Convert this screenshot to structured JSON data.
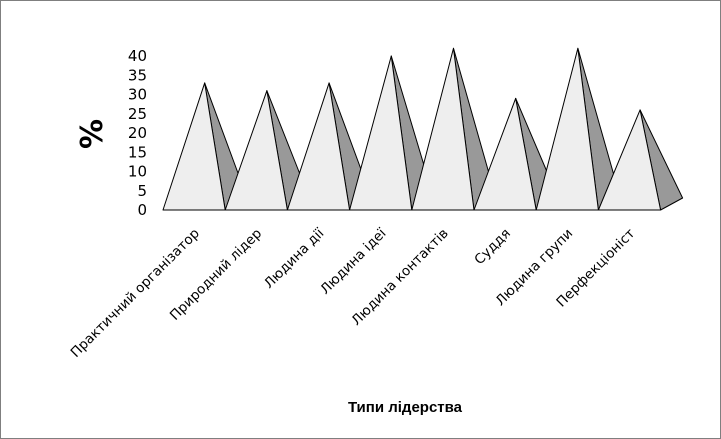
{
  "chart_data": {
    "type": "bar",
    "style": "3d-pyramid",
    "categories": [
      "Практичний організатор",
      "Природний лідер",
      "Людина дії",
      "Людина ідеї",
      "Людина контактів",
      "Суддя",
      "Людина групи",
      "Перфекціоніст"
    ],
    "values": [
      33,
      31,
      33,
      40,
      42,
      29,
      42,
      26
    ],
    "title": "",
    "xlabel": "Типи лідерства",
    "ylabel": "%",
    "ylim": [
      0,
      40
    ],
    "yticks": [
      0,
      5,
      10,
      15,
      20,
      25,
      30,
      35,
      40
    ],
    "grid": false,
    "legend": "none",
    "colors": {
      "front_face": "#eeeeee",
      "side_face": "#999999",
      "outline": "#000000",
      "border": "#7f7f7f"
    }
  }
}
